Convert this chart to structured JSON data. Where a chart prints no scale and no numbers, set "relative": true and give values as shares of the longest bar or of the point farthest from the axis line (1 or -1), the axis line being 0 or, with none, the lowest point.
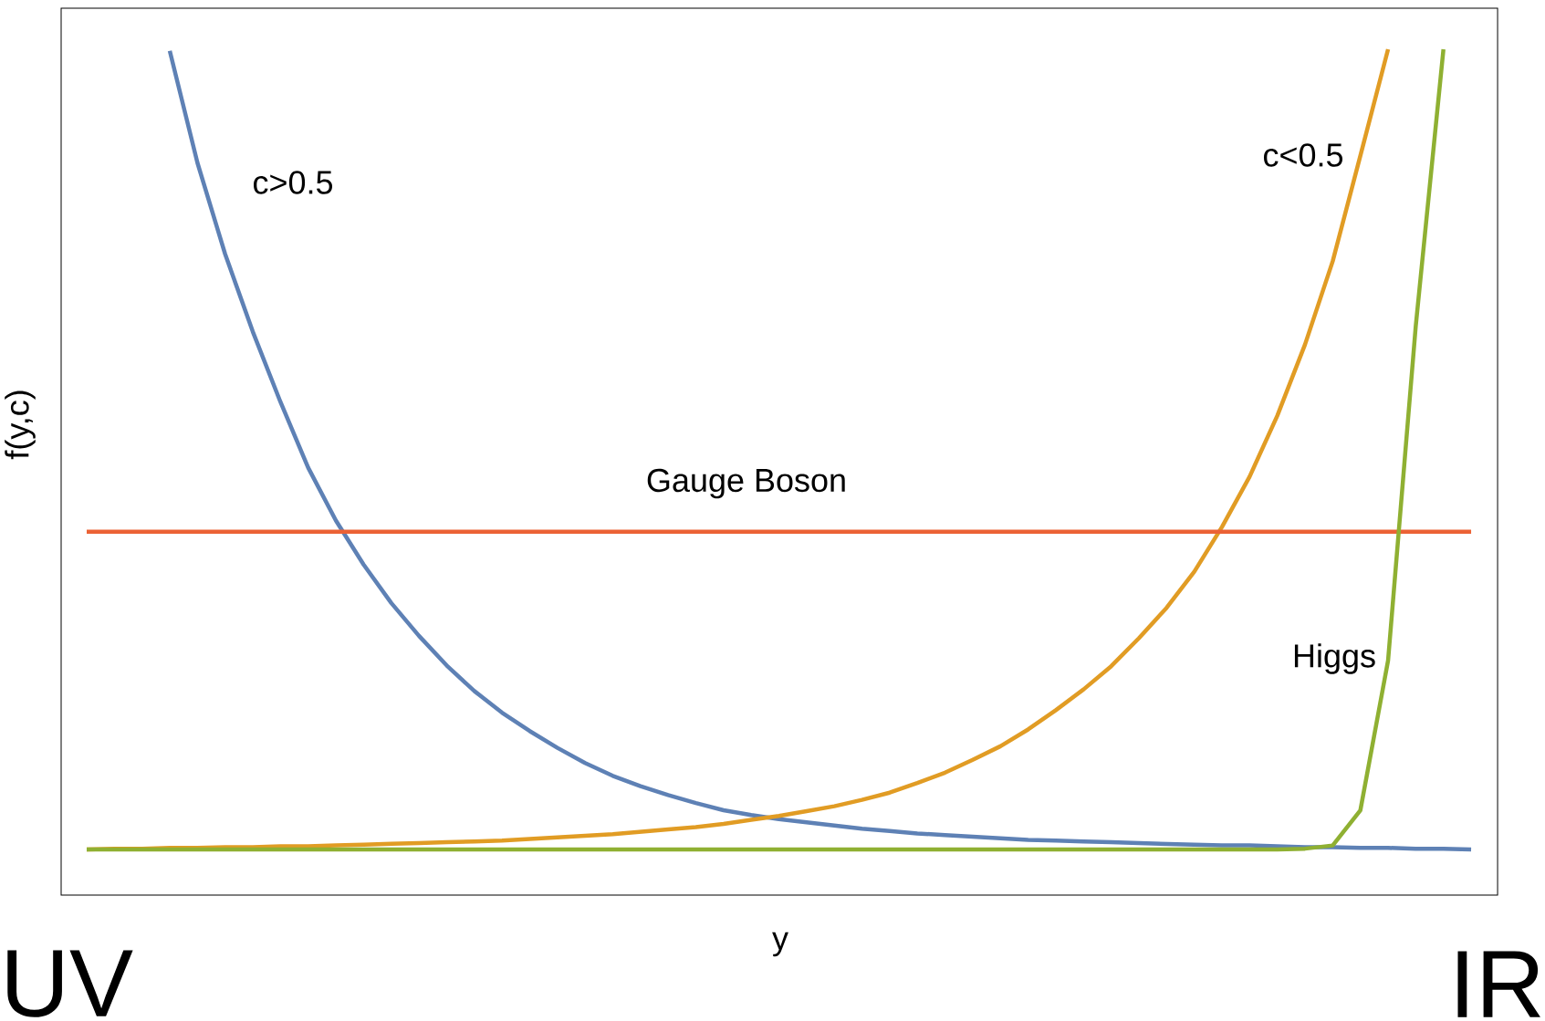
{
  "chart_data": {
    "type": "line",
    "relative": true,
    "xlabel": "y",
    "ylabel": "f(y,c)",
    "legend": false,
    "categories": [
      null,
      null,
      null,
      null,
      null,
      null,
      null,
      null,
      null,
      null,
      null,
      null,
      null,
      null,
      null,
      null,
      null,
      null,
      null,
      null,
      null,
      null,
      null,
      null,
      null,
      null,
      null,
      null,
      null,
      null,
      null,
      null,
      null,
      null,
      null,
      null,
      null,
      null,
      null,
      null,
      null,
      null,
      null,
      null,
      null,
      null,
      null,
      null,
      null,
      null,
      null
    ],
    "series": [
      {
        "name": "c>0.5",
        "color": "#5e81b5",
        "values": [
          null,
          null,
          null,
          0.998,
          0.858,
          0.744,
          0.647,
          0.559,
          0.477,
          0.411,
          0.356,
          0.308,
          0.267,
          0.23,
          0.198,
          0.171,
          0.148,
          0.127,
          0.108,
          0.092,
          0.079,
          0.068,
          0.058,
          0.049,
          0.043,
          0.038,
          0.034,
          0.03,
          0.026,
          0.023,
          0.02,
          0.018,
          0.016,
          0.014,
          0.012,
          0.011,
          0.01,
          0.009,
          0.008,
          0.007,
          0.006,
          0.005,
          0.005,
          0.004,
          0.003,
          0.003,
          0.002,
          0.002,
          0.001,
          0.001,
          0
        ]
      },
      {
        "name": "c<0.5",
        "color": "#e19c24",
        "values": [
          0,
          0.001,
          0.001,
          0.002,
          0.002,
          0.003,
          0.003,
          0.004,
          0.004,
          0.005,
          0.006,
          0.007,
          0.008,
          0.009,
          0.01,
          0.011,
          0.013,
          0.015,
          0.017,
          0.019,
          0.022,
          0.025,
          0.028,
          0.032,
          0.037,
          0.042,
          0.048,
          0.054,
          0.062,
          0.071,
          0.083,
          0.096,
          0.112,
          0.129,
          0.15,
          0.174,
          0.2,
          0.229,
          0.264,
          0.302,
          0.347,
          0.403,
          0.466,
          0.542,
          0.631,
          0.735,
          0.867,
          1.0,
          null,
          null,
          null
        ]
      },
      {
        "name": "Gauge Boson",
        "color": "#eb6235",
        "values": [
          0.397,
          0.397,
          0.397,
          0.397,
          0.397,
          0.397,
          0.397,
          0.397,
          0.397,
          0.397,
          0.397,
          0.397,
          0.397,
          0.397,
          0.397,
          0.397,
          0.397,
          0.397,
          0.397,
          0.397,
          0.397,
          0.397,
          0.397,
          0.397,
          0.397,
          0.397,
          0.397,
          0.397,
          0.397,
          0.397,
          0.397,
          0.397,
          0.397,
          0.397,
          0.397,
          0.397,
          0.397,
          0.397,
          0.397,
          0.397,
          0.397,
          0.397,
          0.397,
          0.397,
          0.397,
          0.397,
          0.397,
          0.397,
          0.397,
          0.397,
          0.397
        ]
      },
      {
        "name": "Higgs",
        "color": "#8fb032",
        "values": [
          0,
          0,
          0,
          0,
          0,
          0,
          0,
          0,
          0,
          0,
          0,
          0,
          0,
          0,
          0,
          0,
          0,
          0,
          0,
          0,
          0,
          0,
          0,
          0,
          0,
          0,
          0,
          0,
          0,
          0,
          0,
          0,
          0,
          0,
          0,
          0,
          0,
          0,
          0,
          0,
          0,
          0,
          0,
          0,
          0.001,
          0.005,
          0.049,
          0.236,
          0.654,
          1.0,
          null
        ]
      }
    ],
    "annotations": [
      "UV",
      "IR"
    ]
  }
}
